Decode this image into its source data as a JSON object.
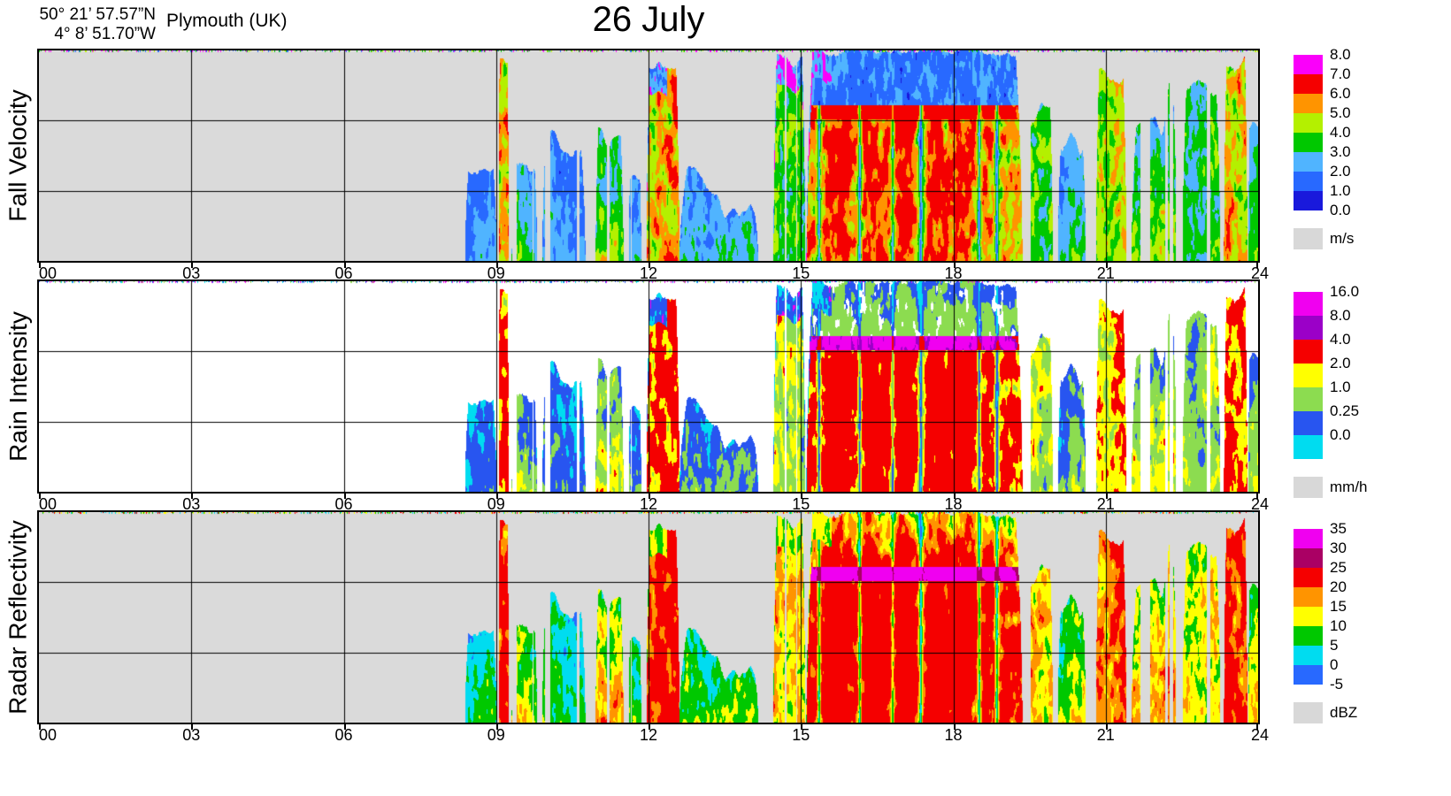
{
  "chart_data": {
    "type": "heatmap",
    "title": "26 July",
    "station": "Plymouth (UK)",
    "coordinates": {
      "lat": "50° 21’ 57.57”N",
      "lon": "4°  8’ 51.70”W"
    },
    "x": {
      "ticks": [
        "00",
        "03",
        "06",
        "09",
        "12",
        "15",
        "18",
        "21",
        "24"
      ],
      "range_hours": [
        0,
        24
      ]
    },
    "panels": [
      {
        "key": "fall_velocity",
        "ylabel": "Fall Velocity",
        "unit": "m/s",
        "background": "#dadada",
        "legend_labels": [
          "8.0",
          "7.0",
          "6.0",
          "5.0",
          "4.0",
          "3.0",
          "2.0",
          "1.0",
          "0.0"
        ],
        "legend_colors": [
          "#fa00fa",
          "#f50000",
          "#ff9400",
          "#b4f000",
          "#00c800",
          "#50b4ff",
          "#2869ff",
          "#1919dc"
        ]
      },
      {
        "key": "rain_intensity",
        "ylabel": "Rain Intensity",
        "unit": "mm/h",
        "background": "#ffffff",
        "legend_labels": [
          "16.0",
          "8.0",
          "4.0",
          "2.0",
          "1.0",
          "0.25",
          "0.0"
        ],
        "legend_colors": [
          "#f000f0",
          "#9b00c8",
          "#f50000",
          "#ffff00",
          "#8cdc50",
          "#2855f0",
          "#00dcf0"
        ]
      },
      {
        "key": "radar_reflectivity",
        "ylabel": "Radar Reflectivity",
        "unit": "dBZ",
        "background": "#dadada",
        "legend_labels": [
          "35",
          "30",
          "25",
          "20",
          "15",
          "10",
          "5",
          "0",
          "-5"
        ],
        "legend_colors": [
          "#f000f0",
          "#aa0064",
          "#f50000",
          "#ff9400",
          "#ffff00",
          "#00c800",
          "#00dcf0",
          "#2869ff"
        ]
      }
    ],
    "events": [
      {
        "t0": 8.38,
        "t1": 9.0,
        "top": 0.6,
        "i": 0.35,
        "gap": 0.2,
        "wig": 0.14
      },
      {
        "t0": 9.04,
        "t1": 9.24,
        "top": 0.04,
        "i": 5.0,
        "gap": 0.0,
        "wig": 0.03
      },
      {
        "t0": 9.3,
        "t1": 9.8,
        "top": 0.48,
        "i": 0.8,
        "gap": 0.3,
        "wig": 0.16
      },
      {
        "t0": 9.9,
        "t1": 10.75,
        "top": 0.4,
        "i": 0.45,
        "gap": 0.34,
        "wig": 0.22
      },
      {
        "t0": 10.95,
        "t1": 11.5,
        "top": 0.42,
        "i": 1.1,
        "gap": 0.24,
        "wig": 0.16
      },
      {
        "t0": 11.6,
        "t1": 11.85,
        "top": 0.58,
        "i": 0.4,
        "gap": 0.38,
        "wig": 0.12
      },
      {
        "t0": 11.95,
        "t1": 12.6,
        "top": 0.05,
        "i": 6.5,
        "gap": 0.04,
        "wig": 0.06,
        "anvil": [
          11.95,
          12.35
        ]
      },
      {
        "t0": 12.6,
        "t1": 14.15,
        "top": 0.5,
        "i": 0.4,
        "gap": 0.1,
        "wig": 0.2,
        "bowl": true
      },
      {
        "t0": 14.45,
        "t1": 15.08,
        "top": 0.03,
        "i": 1.1,
        "gap": 0.28,
        "wig": 0.1,
        "anvil": [
          14.45,
          15.08
        ]
      },
      {
        "t0": 15.1,
        "t1": 19.35,
        "top": 0.0,
        "i": 5.5,
        "gap": 0.02,
        "wig": 0.05,
        "ew": 0.03,
        "bb": 0.28,
        "cores": [
          15.7,
          16.4,
          17.0,
          17.65,
          18.15
        ],
        "weak": [
          15.35,
          16.15,
          16.8,
          17.35,
          18.5,
          18.85
        ],
        "anvil": [
          15.1,
          15.6
        ],
        "fade": 18.9
      },
      {
        "t0": 19.45,
        "t1": 19.95,
        "top": 0.3,
        "i": 1.1,
        "gap": 0.3,
        "wig": 0.16
      },
      {
        "t0": 20.05,
        "t1": 20.6,
        "top": 0.5,
        "i": 0.55,
        "gap": 0.34,
        "wig": 0.2
      },
      {
        "t0": 20.8,
        "t1": 21.4,
        "top": 0.06,
        "i": 2.2,
        "gap": 0.16,
        "wig": 0.12
      },
      {
        "t0": 21.5,
        "t1": 22.4,
        "top": 0.34,
        "i": 0.9,
        "gap": 0.3,
        "wig": 0.24
      },
      {
        "t0": 22.5,
        "t1": 23.25,
        "top": 0.24,
        "i": 1.1,
        "gap": 0.26,
        "wig": 0.2
      },
      {
        "t0": 23.32,
        "t1": 23.78,
        "top": 0.03,
        "i": 3.5,
        "gap": 0.08,
        "wig": 0.08
      },
      {
        "t0": 23.8,
        "t1": 24.01,
        "top": 0.35,
        "i": 0.8,
        "gap": 0.3,
        "wig": 0.2
      }
    ]
  }
}
